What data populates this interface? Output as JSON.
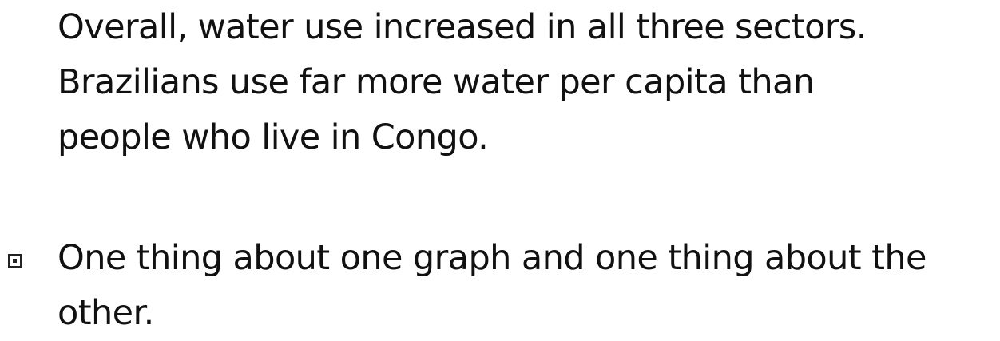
{
  "paragraphs": {
    "summary_lines": [
      "Overall, water use increased in all three sectors.",
      "Brazilians use far more water per capita than",
      "people who live in Congo."
    ],
    "bullet_lines": [
      "One thing about one graph and one thing about the",
      "other."
    ]
  },
  "icons": {
    "bullet": "boxed-square-bullet-icon"
  }
}
